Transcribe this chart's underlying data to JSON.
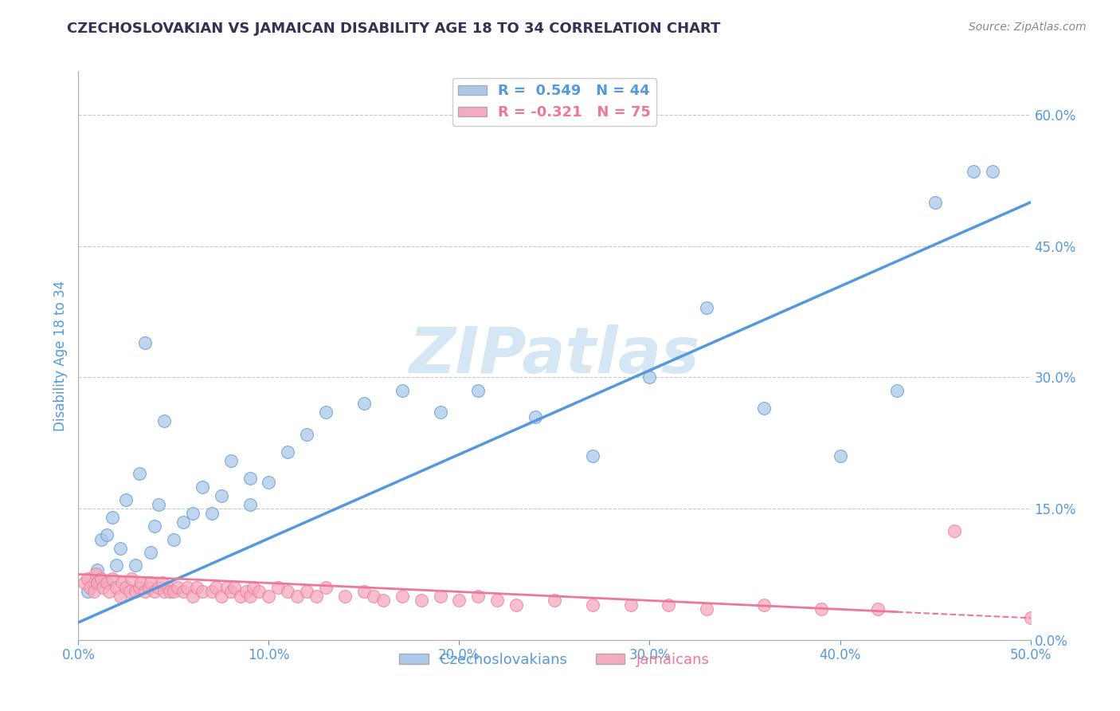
{
  "title": "CZECHOSLOVAKIAN VS JAMAICAN DISABILITY AGE 18 TO 34 CORRELATION CHART",
  "source": "Source: ZipAtlas.com",
  "ylabel": "Disability Age 18 to 34",
  "xlim": [
    0.0,
    0.5
  ],
  "ylim": [
    0.0,
    0.65
  ],
  "xtick_vals": [
    0.0,
    0.1,
    0.2,
    0.3,
    0.4,
    0.5
  ],
  "xtick_labels": [
    "0.0%",
    "10.0%",
    "20.0%",
    "30.0%",
    "40.0%",
    "50.0%"
  ],
  "ytick_vals": [
    0.0,
    0.15,
    0.3,
    0.45,
    0.6
  ],
  "ytick_labels": [
    "0.0%",
    "15.0%",
    "30.0%",
    "45.0%",
    "60.0%"
  ],
  "czech_R": 0.549,
  "czech_N": 44,
  "jamaican_R": -0.321,
  "jamaican_N": 75,
  "czech_color": "#adc8e8",
  "jamaican_color": "#f5aabe",
  "czech_line_color": "#5599dd",
  "jamaican_line_color": "#ee7799",
  "watermark": "ZIPatlas",
  "watermark_color_r": 180,
  "watermark_color_g": 210,
  "watermark_color_b": 235,
  "title_color": "#333355",
  "axis_label_color": "#5599dd",
  "grid_color": "#bbbbbb",
  "czech_scatter_x": [
    0.005,
    0.008,
    0.01,
    0.012,
    0.015,
    0.015,
    0.018,
    0.02,
    0.022,
    0.025,
    0.03,
    0.032,
    0.035,
    0.038,
    0.04,
    0.042,
    0.045,
    0.05,
    0.055,
    0.06,
    0.065,
    0.07,
    0.075,
    0.08,
    0.09,
    0.09,
    0.1,
    0.11,
    0.12,
    0.13,
    0.15,
    0.17,
    0.19,
    0.21,
    0.24,
    0.27,
    0.3,
    0.33,
    0.36,
    0.4,
    0.43,
    0.45,
    0.47,
    0.48
  ],
  "czech_scatter_y": [
    0.055,
    0.065,
    0.08,
    0.115,
    0.065,
    0.12,
    0.14,
    0.085,
    0.105,
    0.16,
    0.085,
    0.19,
    0.34,
    0.1,
    0.13,
    0.155,
    0.25,
    0.115,
    0.135,
    0.145,
    0.175,
    0.145,
    0.165,
    0.205,
    0.155,
    0.185,
    0.18,
    0.215,
    0.235,
    0.26,
    0.27,
    0.285,
    0.26,
    0.285,
    0.255,
    0.21,
    0.3,
    0.38,
    0.265,
    0.21,
    0.285,
    0.5,
    0.535,
    0.535
  ],
  "jamaican_scatter_x": [
    0.003,
    0.005,
    0.006,
    0.008,
    0.009,
    0.01,
    0.012,
    0.013,
    0.015,
    0.016,
    0.018,
    0.02,
    0.022,
    0.023,
    0.025,
    0.027,
    0.028,
    0.03,
    0.032,
    0.033,
    0.035,
    0.037,
    0.038,
    0.04,
    0.042,
    0.044,
    0.045,
    0.047,
    0.048,
    0.05,
    0.052,
    0.055,
    0.057,
    0.06,
    0.062,
    0.065,
    0.07,
    0.072,
    0.075,
    0.078,
    0.08,
    0.082,
    0.085,
    0.088,
    0.09,
    0.092,
    0.095,
    0.1,
    0.105,
    0.11,
    0.115,
    0.12,
    0.125,
    0.13,
    0.14,
    0.15,
    0.155,
    0.16,
    0.17,
    0.18,
    0.19,
    0.2,
    0.21,
    0.22,
    0.23,
    0.25,
    0.27,
    0.29,
    0.31,
    0.33,
    0.36,
    0.39,
    0.42,
    0.46,
    0.5
  ],
  "jamaican_scatter_y": [
    0.065,
    0.07,
    0.06,
    0.055,
    0.075,
    0.065,
    0.07,
    0.06,
    0.065,
    0.055,
    0.07,
    0.06,
    0.05,
    0.065,
    0.06,
    0.055,
    0.07,
    0.055,
    0.06,
    0.065,
    0.055,
    0.06,
    0.065,
    0.055,
    0.06,
    0.065,
    0.055,
    0.06,
    0.055,
    0.055,
    0.06,
    0.055,
    0.06,
    0.05,
    0.06,
    0.055,
    0.055,
    0.06,
    0.05,
    0.06,
    0.055,
    0.06,
    0.05,
    0.055,
    0.05,
    0.06,
    0.055,
    0.05,
    0.06,
    0.055,
    0.05,
    0.055,
    0.05,
    0.06,
    0.05,
    0.055,
    0.05,
    0.045,
    0.05,
    0.045,
    0.05,
    0.045,
    0.05,
    0.045,
    0.04,
    0.045,
    0.04,
    0.04,
    0.04,
    0.035,
    0.04,
    0.035,
    0.035,
    0.125,
    0.025
  ]
}
